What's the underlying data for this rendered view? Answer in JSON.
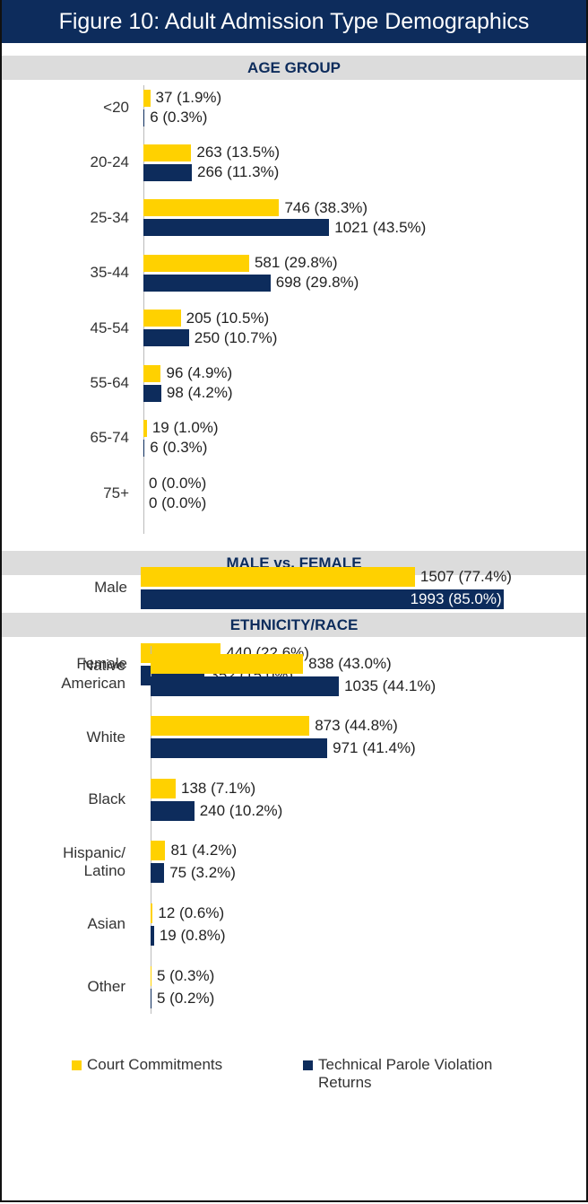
{
  "title": "Figure 10: Adult Admission Type Demographics",
  "chart_data": [
    {
      "type": "bar",
      "title": "AGE GROUP",
      "categories": [
        "<20",
        "20-24",
        "25-34",
        "35-44",
        "45-54",
        "55-64",
        "65-74",
        "75+"
      ],
      "series": [
        {
          "name": "Court Commitments",
          "color": "#ffd100",
          "values": [
            37,
            263,
            746,
            581,
            205,
            96,
            19,
            0
          ],
          "value_labels": [
            "37 (1.9%)",
            "263 (13.5%)",
            "746 (38.3%)",
            "581 (29.8%)",
            "205 (10.5%)",
            "96 (4.9%)",
            "19 (1.0%)",
            "0 (0.0%)"
          ]
        },
        {
          "name": "Technical Parole Violation Returns",
          "color": "#0d2c5c",
          "values": [
            6,
            266,
            1021,
            698,
            250,
            98,
            6,
            0
          ],
          "value_labels": [
            "6 (0.3%)",
            "266 (11.3%)",
            "1021 (43.5%)",
            "698 (29.8%)",
            "250 (10.7%)",
            "98 (4.2%)",
            "6 (0.3%)",
            "0 (0.0%)"
          ]
        }
      ]
    },
    {
      "type": "bar",
      "title": "MALE vs. FEMALE",
      "categories": [
        "Male",
        "Female"
      ],
      "series": [
        {
          "color": "#ffd100",
          "values": [
            1507,
            440
          ],
          "value_labels": [
            "1507 (77.4%)",
            "440 (22.6%)"
          ]
        },
        {
          "color": "#0d2c5c",
          "values": [
            1993,
            352
          ],
          "value_labels": [
            "1993 (85.0%)",
            "352 (15.0%)"
          ]
        }
      ]
    },
    {
      "type": "bar",
      "title": "ETHNICITY/RACE",
      "categories": [
        "Native American",
        "White",
        "Black",
        "Hispanic/ Latino",
        "Asian",
        "Other"
      ],
      "series": [
        {
          "color": "#ffd100",
          "values": [
            838,
            873,
            138,
            81,
            12,
            5
          ],
          "value_labels": [
            "838 (43.0%)",
            "873 (44.8%)",
            "138 (7.1%)",
            "81 (4.2%)",
            "12 (0.6%)",
            "5 (0.3%)"
          ]
        },
        {
          "color": "#0d2c5c",
          "values": [
            1035,
            971,
            240,
            75,
            19,
            5
          ],
          "value_labels": [
            "1035 (44.1%)",
            "971 (41.4%)",
            "240 (10.2%)",
            "75 (3.2%)",
            "19 (0.8%)",
            "5 (0.2%)"
          ]
        }
      ]
    }
  ]
}
